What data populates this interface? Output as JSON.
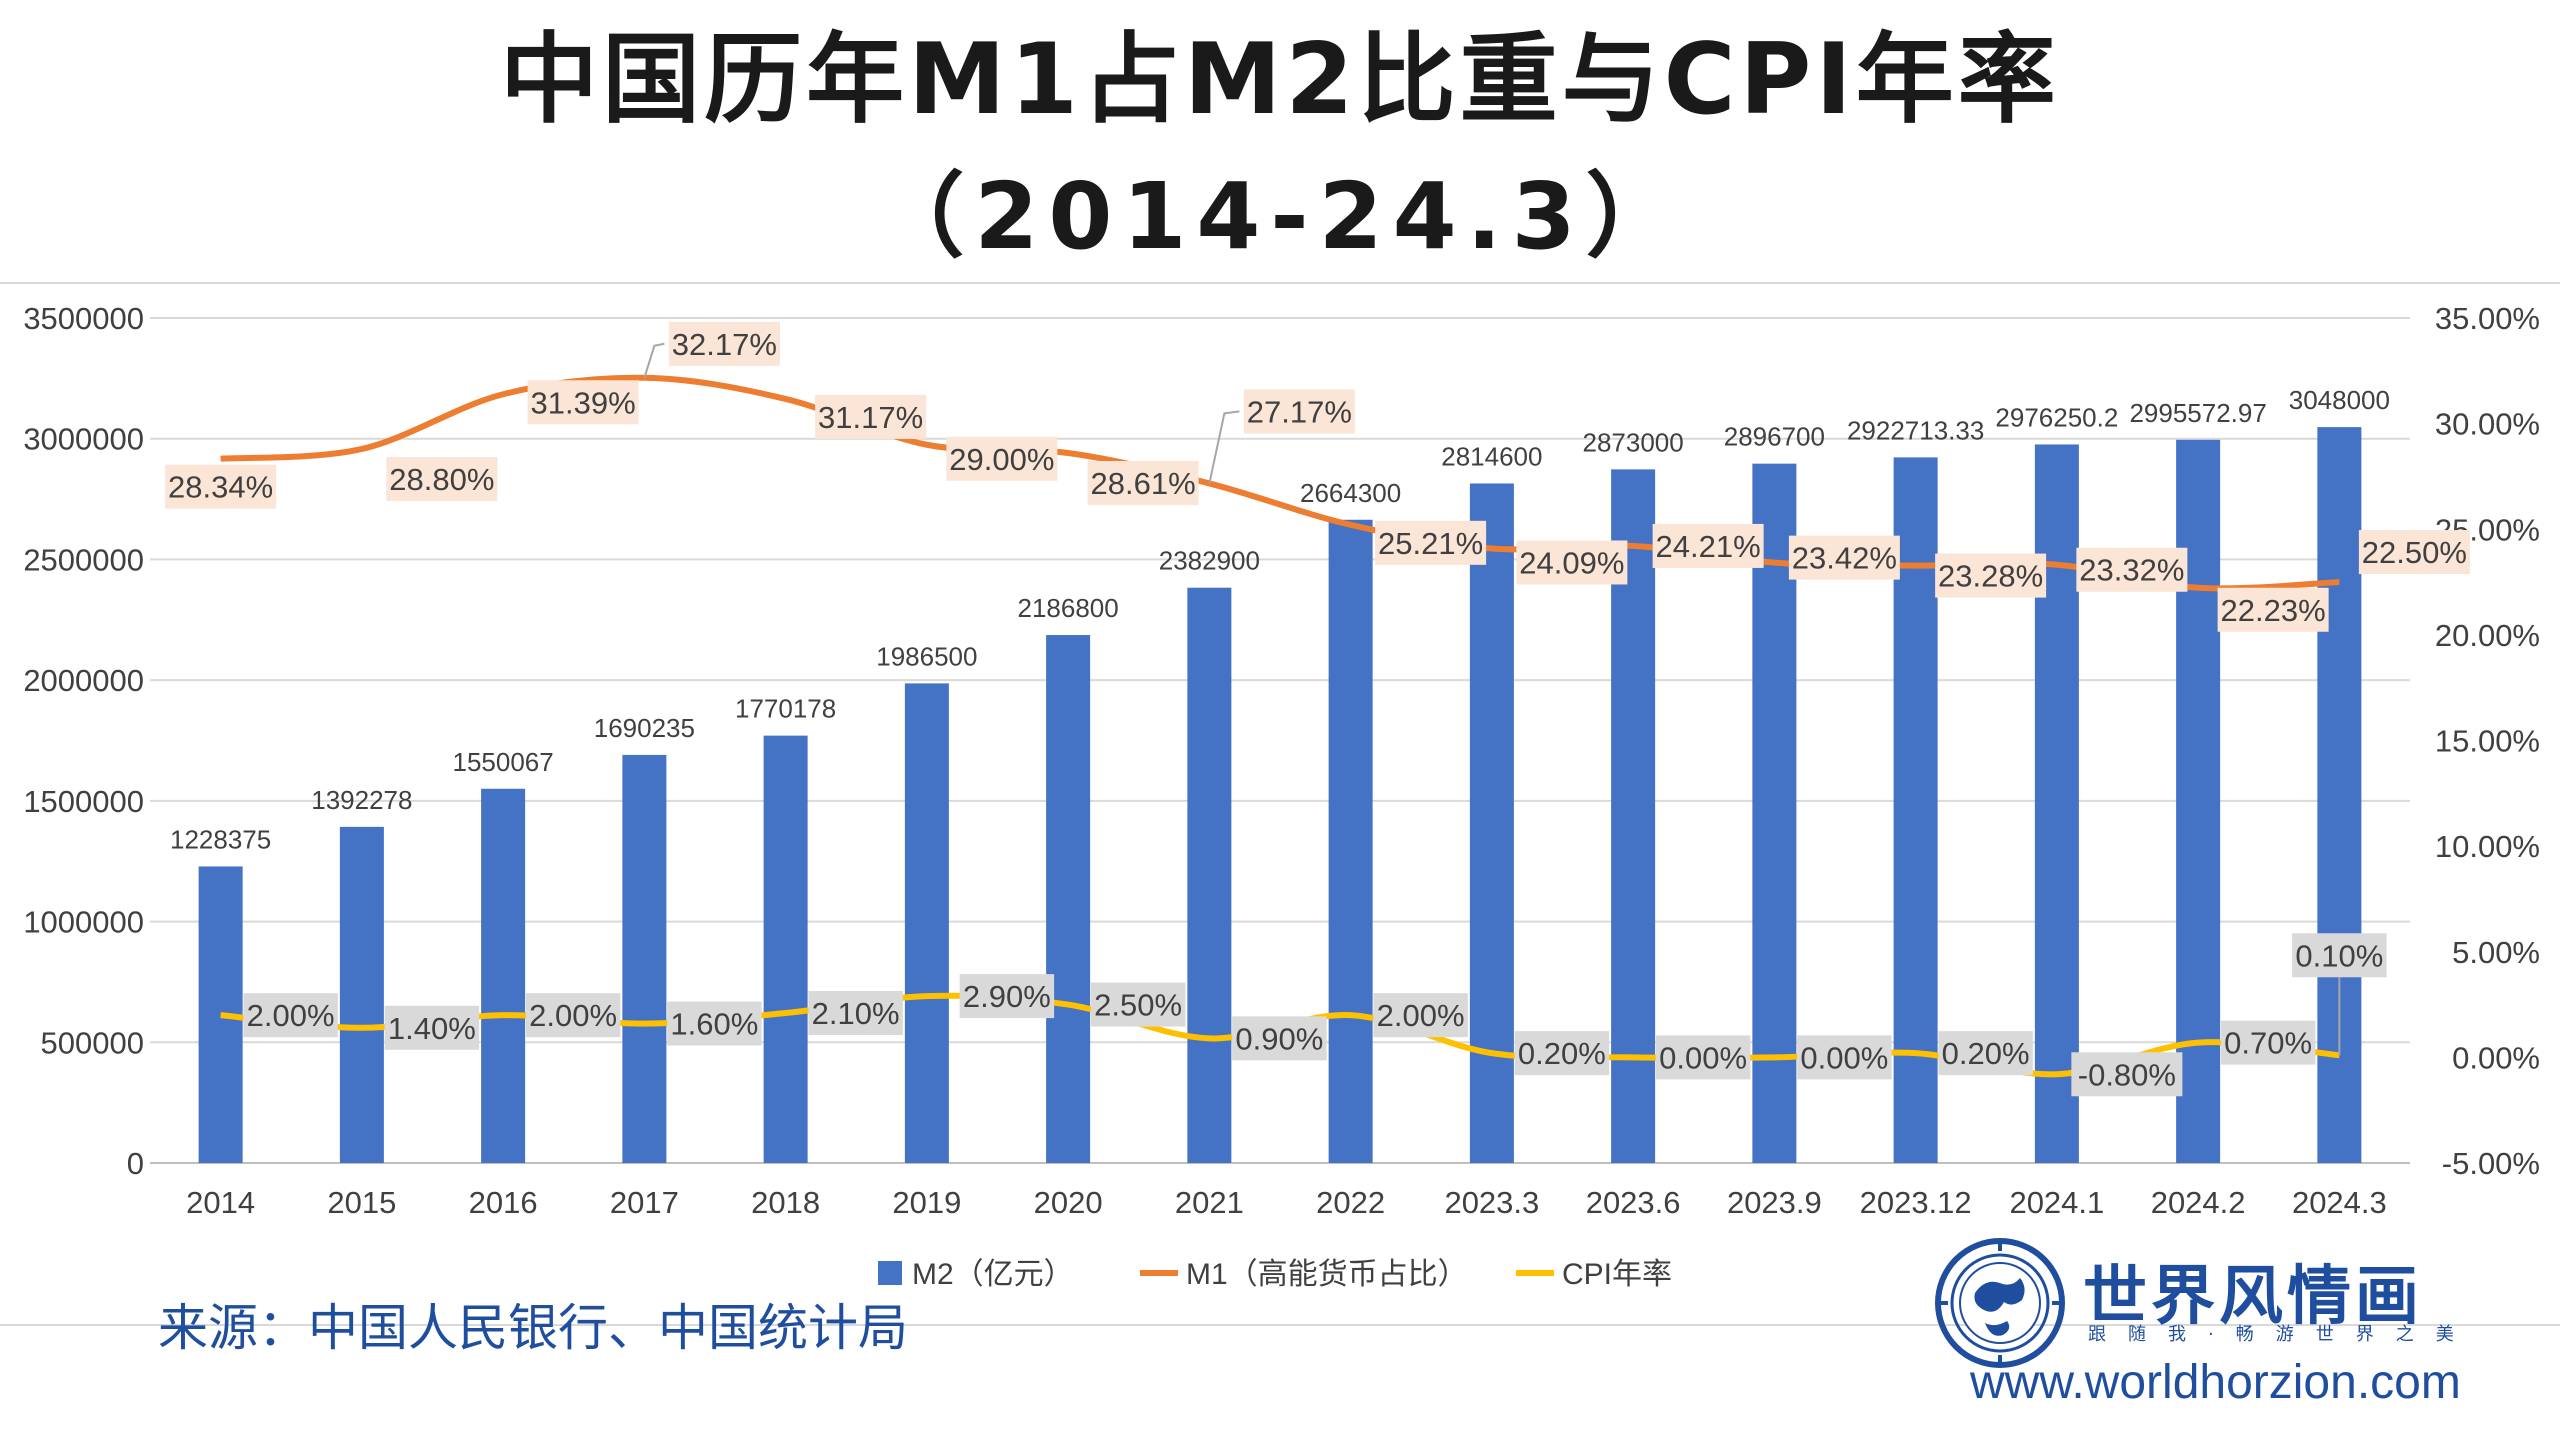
{
  "title_line1": "中国历年M1占M2比重与CPI年率",
  "title_line2": "（2014-24.3）",
  "source": "来源：中国人民银行、中国统计局",
  "brand": {
    "name": "世界风情画",
    "slogan": "跟随我·畅游世界之美",
    "website": "www.worldhorzion.com"
  },
  "colors": {
    "m2": "#4472c4",
    "m1": "#ed7d31",
    "cpi": "#ffc000",
    "m1_label_bg": "#fbe5d6",
    "cpi_label_bg": "#d9d9d9"
  },
  "chart_data": {
    "type": "bar",
    "categories": [
      "2014",
      "2015",
      "2016",
      "2017",
      "2018",
      "2019",
      "2020",
      "2021",
      "2022",
      "2023.3",
      "2023.6",
      "2023.9",
      "2023.12",
      "2024.1",
      "2024.2",
      "2024.3"
    ],
    "left_axis": {
      "ylim": [
        0,
        3500000
      ],
      "ticks": [
        "0",
        "500000",
        "1000000",
        "1500000",
        "2000000",
        "2500000",
        "3000000",
        "3500000"
      ]
    },
    "right_axis": {
      "ylim": [
        -5,
        35
      ],
      "ticks": [
        "-5.00%",
        "0.00%",
        "5.00%",
        "10.00%",
        "15.00%",
        "20.00%",
        "25.00%",
        "30.00%",
        "35.00%"
      ]
    },
    "grid": true,
    "legend_position": "bottom",
    "series": [
      {
        "name": "M2（亿元）",
        "type": "bar",
        "axis": "left",
        "values": [
          1228375,
          1392278,
          1550067,
          1690235,
          1770178,
          1986500,
          2186800,
          2382900,
          2664300,
          2814600,
          2873000,
          2896700,
          2922713.33,
          2976250.2,
          2995572.97,
          3048000
        ],
        "labels": [
          "1228375",
          "1392278",
          "1550067",
          "1690235",
          "1770178",
          "1986500",
          "2186800",
          "2382900",
          "2664300",
          "2814600",
          "2873000",
          "2896700",
          "2922713.33",
          "2976250.2",
          "2995572.97",
          "3048000"
        ]
      },
      {
        "name": "M1（高能货币占比）",
        "type": "line",
        "axis": "right",
        "values": [
          28.34,
          28.8,
          31.39,
          32.17,
          31.17,
          29.0,
          28.61,
          27.17,
          25.21,
          24.09,
          24.21,
          23.42,
          23.28,
          23.32,
          22.23,
          22.5
        ],
        "labels": [
          "28.34%",
          "28.80%",
          "31.39%",
          "32.17%",
          "31.17%",
          "29.00%",
          "28.61%",
          "27.17%",
          "25.21%",
          "24.09%",
          "24.21%",
          "23.42%",
          "23.28%",
          "23.32%",
          "22.23%",
          "22.50%"
        ]
      },
      {
        "name": "CPI年率",
        "type": "line",
        "axis": "right",
        "values": [
          2.0,
          1.4,
          2.0,
          1.6,
          2.1,
          2.9,
          2.5,
          0.9,
          2.0,
          0.2,
          0.0,
          0.0,
          0.2,
          -0.8,
          0.7,
          0.1
        ],
        "labels": [
          "2.00%",
          "1.40%",
          "2.00%",
          "1.60%",
          "2.10%",
          "2.90%",
          "2.50%",
          "0.90%",
          "2.00%",
          "0.20%",
          "0.00%",
          "0.00%",
          "0.20%",
          "-0.80%",
          "0.70%",
          "0.10%"
        ]
      }
    ]
  }
}
